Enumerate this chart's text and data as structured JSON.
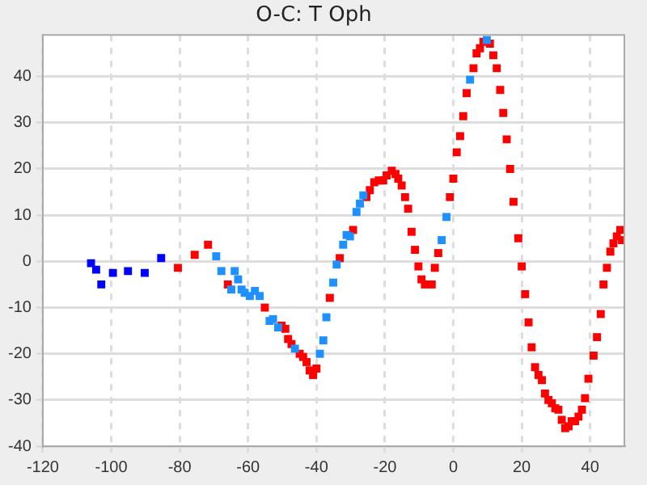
{
  "chart_data": {
    "type": "scatter",
    "title": "O-C: T Oph",
    "xlim": [
      -120,
      50
    ],
    "xticks": [
      -120,
      -100,
      -80,
      -60,
      -40,
      -20,
      0,
      20,
      40
    ],
    "ylim": [
      -40,
      49
    ],
    "yticks": [
      -40,
      -30,
      -20,
      -10,
      0,
      10,
      20,
      30,
      40
    ],
    "grid": true,
    "legend": false,
    "marker": "square",
    "series": [
      {
        "color": "#0000ff",
        "x": [
          -105.9,
          -104.4,
          -102.9,
          -99.5,
          -95.1,
          -90.2,
          -85.4
        ],
        "values": [
          -0.4,
          -1.8,
          -5,
          -2.5,
          -2.1,
          -2.5,
          0.7
        ]
      },
      {
        "color": "#1e90ff",
        "x": [
          -69.3,
          -67.8,
          -64.9,
          -63.9,
          -62.9,
          -61.9,
          -61,
          -59.5,
          -58,
          -56.6,
          -53.7,
          -52.7,
          -51.2,
          -46.3,
          -39,
          -38,
          -37.1,
          -35.1,
          -34.1,
          -32.2,
          -31.2,
          -30.2,
          -28.3,
          -27.3,
          -26.3,
          -3.4,
          -2,
          4.9,
          9.8
        ],
        "values": [
          1.1,
          -2.1,
          -6.1,
          -2.1,
          -3.9,
          -6.1,
          -6.8,
          -7.5,
          -6.4,
          -7.5,
          -12.9,
          -12.5,
          -14.3,
          -18.9,
          -20,
          -17.1,
          -12.1,
          -4.6,
          -0.7,
          3.6,
          5.7,
          5.4,
          10.7,
          12.5,
          14.3,
          4.6,
          9.6,
          39.3,
          47.9
        ]
      },
      {
        "color": "#ff0000",
        "x": [
          -80.5,
          -75.6,
          -71.7,
          -65.9,
          -55.1,
          -50.2,
          -49.1,
          -48.3,
          -47.3,
          -44.9,
          -43.9,
          -42.9,
          -42,
          -41,
          -40,
          -36.1,
          -33.2,
          -29.3,
          -25.4,
          -24.4,
          -23.1,
          -21.8,
          -20.5,
          -19.5,
          -18,
          -16.9,
          -16.1,
          -15.1,
          -14.1,
          -13.2,
          -12.2,
          -11.2,
          -10.2,
          -9.3,
          -8.3,
          -6.3,
          -5.4,
          -4.4,
          -1,
          0,
          1,
          2,
          2.9,
          3.9,
          5.9,
          6.8,
          7.8,
          8.8,
          10.7,
          11.7,
          12.7,
          13.7,
          14.6,
          15.6,
          16.6,
          17.6,
          19,
          20,
          21,
          22,
          22.9,
          23.9,
          24.9,
          25.9,
          26.8,
          27.8,
          28.8,
          29.8,
          30.7,
          31.7,
          32.7,
          33.7,
          34.6,
          35.6,
          36.6,
          37.6,
          38.5,
          39.5,
          41,
          42,
          43.1,
          43.9,
          44.9,
          45.9,
          46.8,
          47.8,
          48.8,
          49.3
        ],
        "values": [
          -1.4,
          1.4,
          3.6,
          -5,
          -10,
          -13.9,
          -14.6,
          -16.8,
          -17.9,
          -20,
          -20.7,
          -21.8,
          -23.6,
          -24.6,
          -23.2,
          -7.9,
          0.7,
          6.8,
          13.9,
          15.4,
          17.1,
          17.5,
          17.5,
          18.6,
          19.6,
          18.9,
          17.9,
          16.4,
          13.9,
          11.4,
          6.4,
          2.5,
          -1.1,
          -3.9,
          -5,
          -5,
          -1.4,
          1.8,
          13.9,
          17.9,
          23.6,
          27.1,
          31.4,
          36.4,
          41.8,
          45,
          46.1,
          47.5,
          47.1,
          44.6,
          41.8,
          37.1,
          32.1,
          26.4,
          20,
          12.9,
          5,
          -1.1,
          -7.1,
          -13.2,
          -18.6,
          -22.9,
          -24.6,
          -25.7,
          -28.6,
          -30,
          -30.7,
          -31.8,
          -32.1,
          -34.3,
          -36.1,
          -35.7,
          -34.6,
          -34.6,
          -33.6,
          -32.1,
          -29.6,
          -25.4,
          -20.4,
          -16.4,
          -11.4,
          -5,
          -1.4,
          2.1,
          3.9,
          5.4,
          6.8,
          4.6
        ]
      }
    ]
  }
}
